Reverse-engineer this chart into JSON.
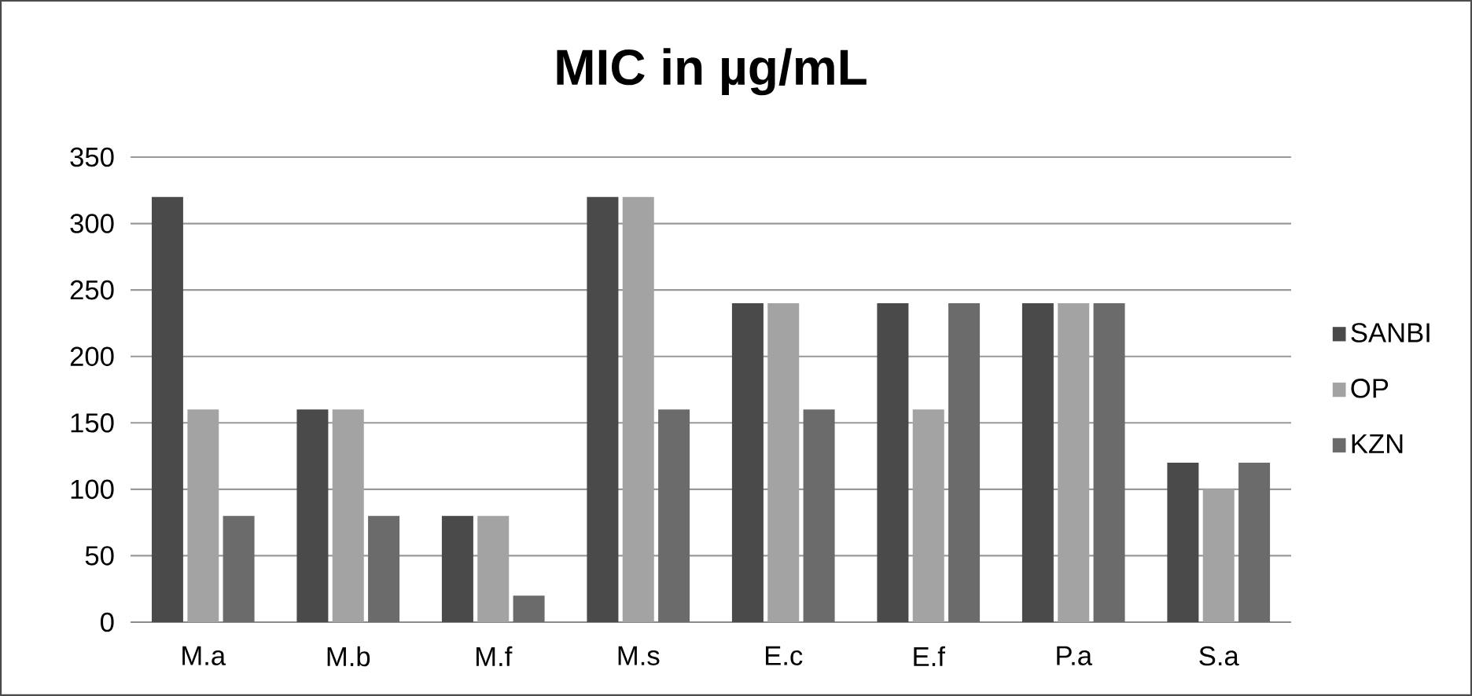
{
  "chart_data": {
    "type": "bar",
    "title": "MIC in µg/mL",
    "categories": [
      "M.a",
      "M.b",
      "M.f",
      "M.s",
      "E.c",
      "E.f",
      "P.a",
      "S.a"
    ],
    "series": [
      {
        "name": "SANBI",
        "color": "#4a4a4a",
        "values": [
          320,
          160,
          80,
          320,
          240,
          240,
          240,
          120
        ]
      },
      {
        "name": "OP",
        "color": "#a3a3a3",
        "values": [
          160,
          160,
          80,
          320,
          240,
          160,
          240,
          100
        ]
      },
      {
        "name": "KZN",
        "color": "#6b6b6b",
        "values": [
          80,
          80,
          20,
          160,
          160,
          240,
          240,
          120
        ]
      }
    ],
    "ylim": [
      0,
      350
    ],
    "yticks": [
      0,
      50,
      100,
      150,
      200,
      250,
      300,
      350
    ],
    "grid": "y",
    "legend": "right"
  }
}
